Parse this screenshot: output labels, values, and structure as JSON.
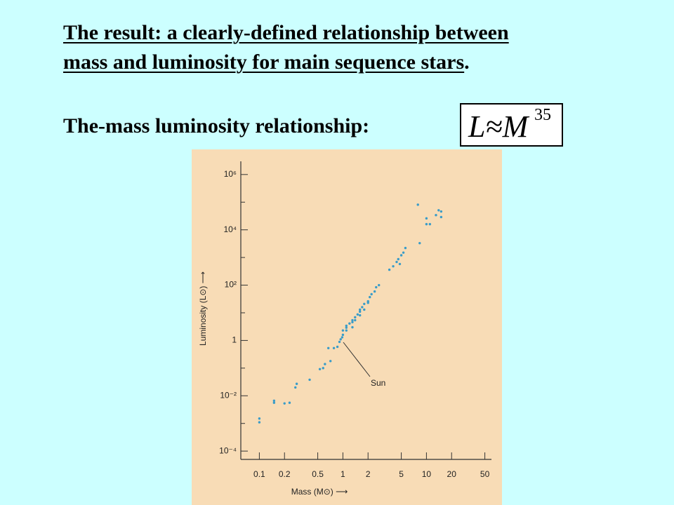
{
  "slide": {
    "headline": {
      "underlined": [
        "The result: a clearly-defined relationship between",
        "mass and luminosity for main sequence stars"
      ],
      "end": "."
    },
    "subhead": "The-mass luminosity relationship:",
    "formula": {
      "base": "L≈M",
      "exponent": "35"
    }
  },
  "chart_data": {
    "type": "scatter",
    "x_label": "Mass (M⊙) ⟶",
    "y_label": "Luminosity (L⊙) ⟶",
    "annotation": "Sun",
    "color": "#3a9cc8",
    "xscale": "log",
    "yscale": "log",
    "xlim": [
      0.06,
      60
    ],
    "ylim": [
      5e-05,
      3000000
    ],
    "xticks": [
      0.1,
      0.2,
      0.5,
      1,
      2,
      5,
      10,
      20,
      50
    ],
    "yticks": [
      {
        "value": 0.0001,
        "label": "10⁻⁴"
      },
      {
        "value": 0.001,
        "label": null
      },
      {
        "value": 0.01,
        "label": "10⁻²"
      },
      {
        "value": 0.1,
        "label": null
      },
      1,
      {
        "value": 10,
        "label": null
      },
      {
        "value": 100,
        "label": "10²"
      },
      {
        "value": 1000,
        "label": null
      },
      {
        "value": 10000,
        "label": "10⁴"
      },
      {
        "value": 100000,
        "label": null
      },
      {
        "value": 1000000,
        "label": "10⁶"
      }
    ],
    "x": [
      0.1,
      0.1,
      0.15,
      0.15,
      0.2,
      0.23,
      0.27,
      0.28,
      0.4,
      0.53,
      0.58,
      0.61,
      0.71,
      0.67,
      0.78,
      0.86,
      0.91,
      0.94,
      0.98,
      1.0,
      1.0,
      1.1,
      1.1,
      1.2,
      1.3,
      1.3,
      1.4,
      1.5,
      1.6,
      1.6,
      1.7,
      1.8,
      2.0,
      2.1,
      2.2,
      2.4,
      2.5,
      2.7,
      1.1,
      1.3,
      1.4,
      1.6,
      1.8,
      2.0,
      3.6,
      4.0,
      4.4,
      4.6,
      5.0,
      5.3,
      5.6,
      4.8,
      8.3,
      7.9,
      10,
      10,
      11,
      13,
      14,
      15,
      15
    ],
    "values": [
      0.0011,
      0.0015,
      0.0056,
      0.0066,
      0.0053,
      0.0056,
      0.02,
      0.027,
      0.038,
      0.092,
      0.1,
      0.14,
      0.18,
      0.53,
      0.53,
      0.59,
      0.89,
      1.1,
      1.3,
      1.6,
      2.3,
      2.9,
      3.4,
      4.1,
      4.6,
      5.4,
      6.9,
      8.7,
      11,
      13,
      16,
      21,
      26,
      37,
      47,
      59,
      84,
      100,
      2.3,
      3.0,
      5.4,
      8.1,
      13,
      23,
      360,
      480,
      690,
      870,
      1200,
      1500,
      2200,
      580,
      3300,
      81000,
      26000,
      16000,
      16000,
      34000,
      51000,
      46000,
      29000
    ]
  }
}
